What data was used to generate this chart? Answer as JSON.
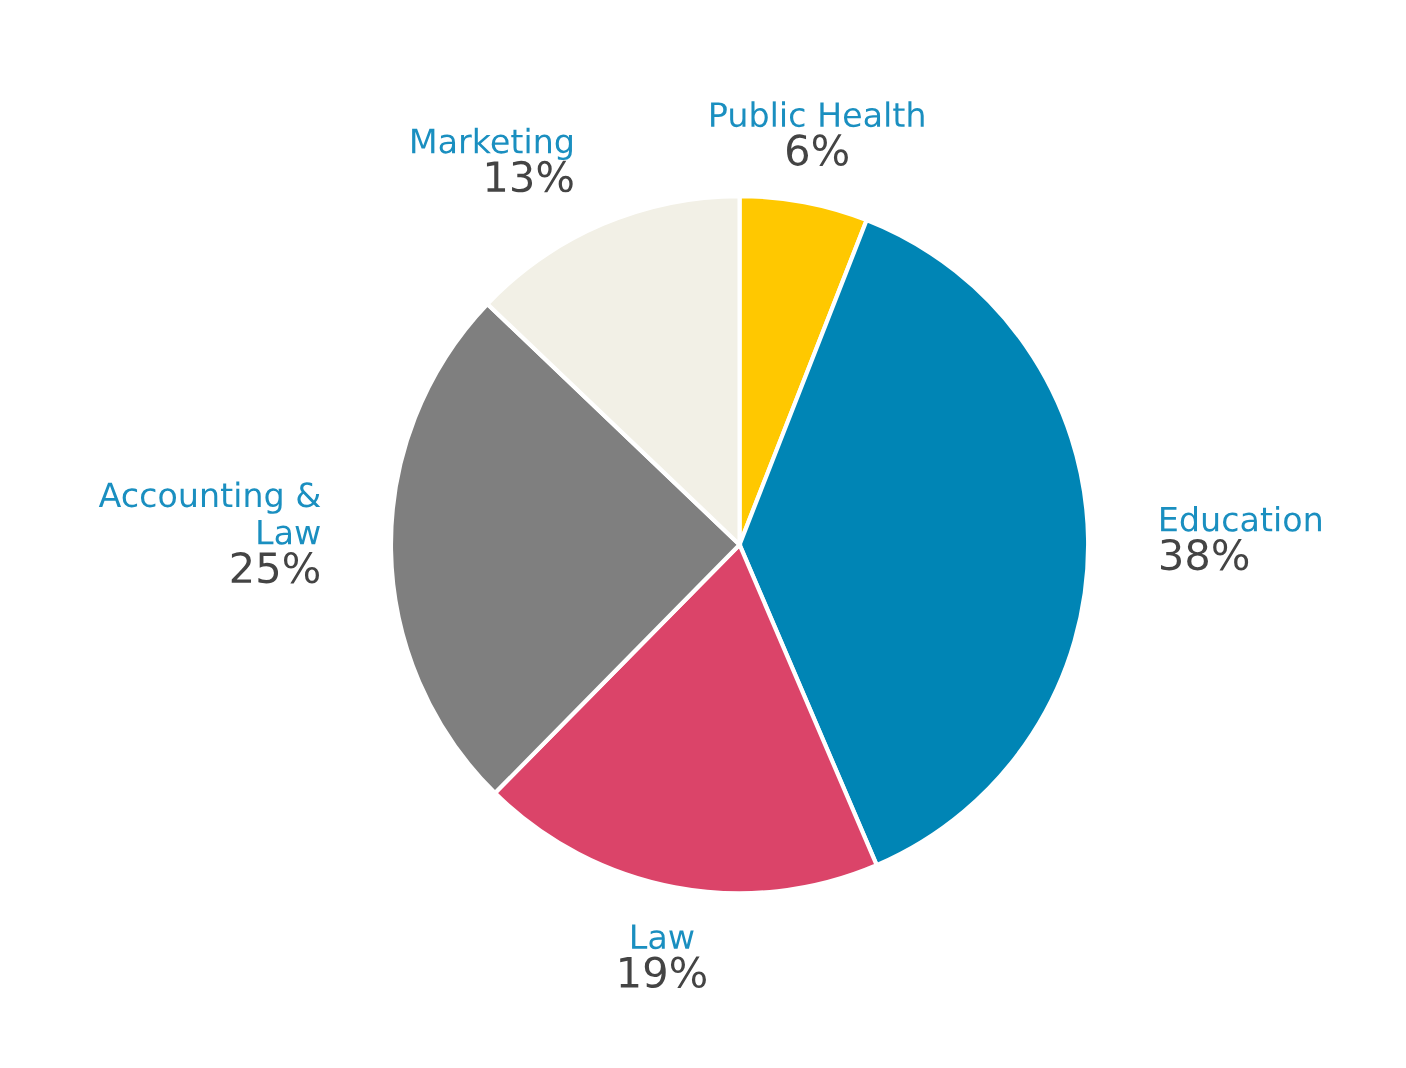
{
  "chart_data": {
    "type": "pie",
    "categories": [
      "Public Health",
      "Education",
      "Law",
      "Accounting &\nLaw",
      "Marketing"
    ],
    "values": [
      6,
      38,
      19,
      25,
      13
    ],
    "value_labels": [
      "6%",
      "38%",
      "19%",
      "25%",
      "13%"
    ],
    "colors": [
      "#ffc800",
      "#0085b5",
      "#db4469",
      "#7f7f7f",
      "#f2f0e6"
    ]
  }
}
